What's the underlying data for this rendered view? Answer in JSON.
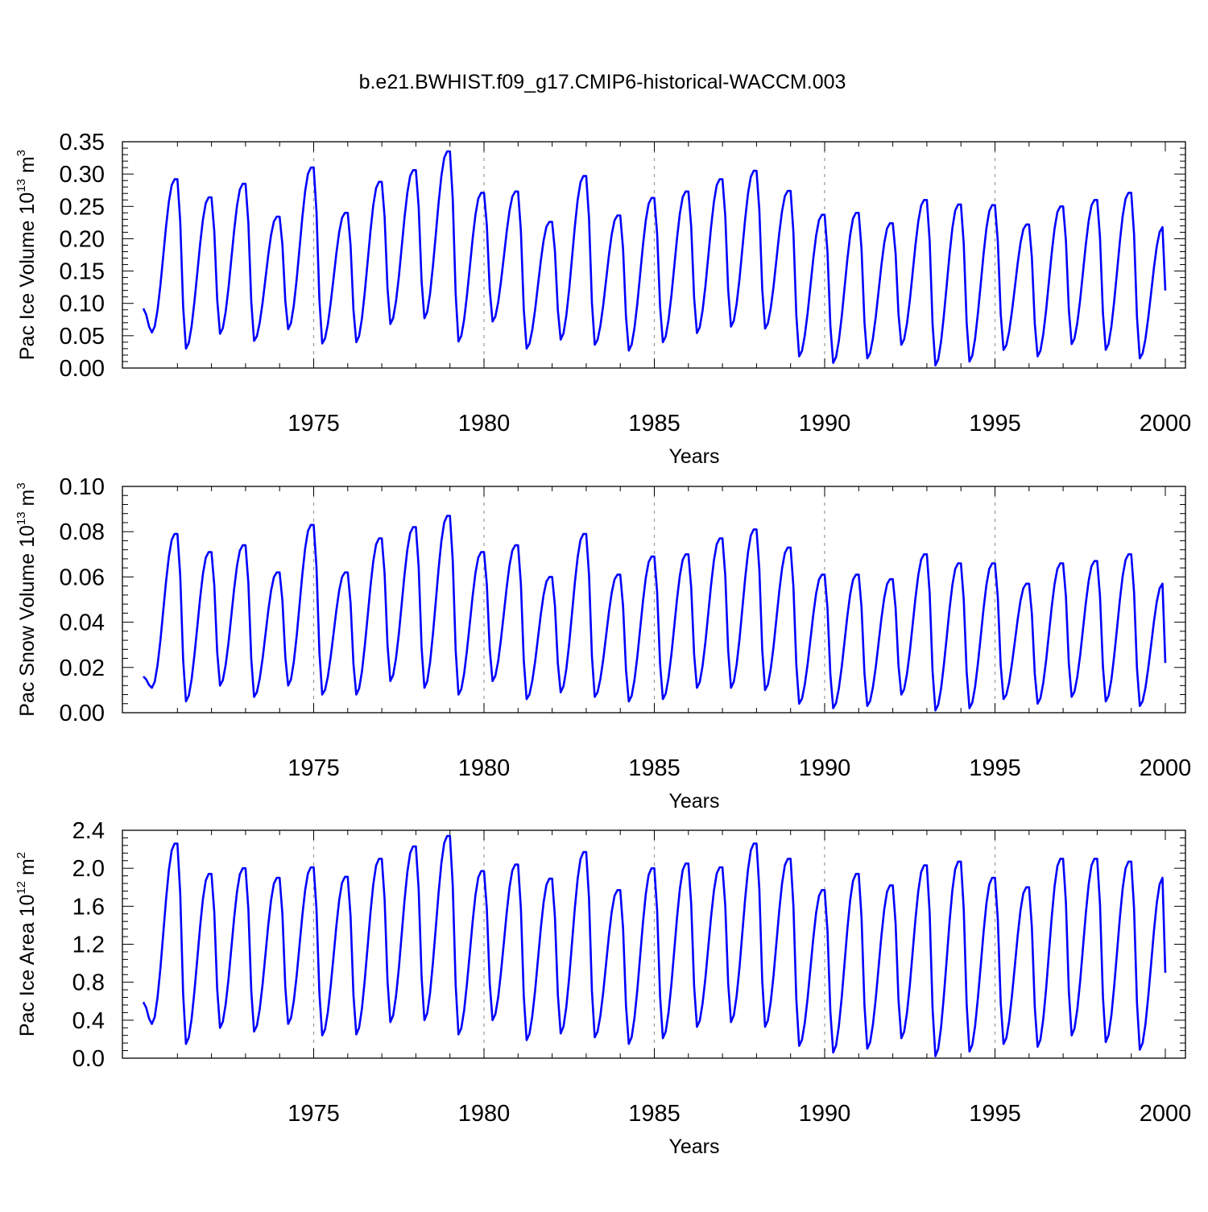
{
  "title": "b.e21.BWHIST.f09_g17.CMIP6-historical-WACCM.003",
  "colors": {
    "series": "#0000ff",
    "axis": "#000000",
    "gridline": "#999999"
  },
  "chart_data": [
    {
      "type": "line",
      "ylabel_text": "Pac Ice Volume 10",
      "ylabel_exp": "13",
      "ylabel_unit": " m",
      "ylabel_unit_exp": "3",
      "xlabel": "Years",
      "xlim": [
        1970,
        2000
      ],
      "ylim": [
        0,
        0.35
      ],
      "yticks": [
        0,
        0.05,
        0.1,
        0.15,
        0.2,
        0.25,
        0.3,
        0.35
      ],
      "ytick_labels": [
        "0.00",
        "0.05",
        "0.10",
        "0.15",
        "0.20",
        "0.25",
        "0.30",
        "0.35"
      ],
      "xticks": [
        1975,
        1980,
        1985,
        1990,
        1995,
        2000
      ],
      "xtick_labels": [
        "1975",
        "1980",
        "1985",
        "1990",
        "1995",
        "2000"
      ],
      "vlines": [
        1975,
        1980,
        1985,
        1990,
        1995
      ],
      "minima": [
        0.055,
        0.03,
        0.053,
        0.042,
        0.06,
        0.038,
        0.04,
        0.068,
        0.077,
        0.041,
        0.072,
        0.03,
        0.044,
        0.036,
        0.027,
        0.04,
        0.054,
        0.064,
        0.061,
        0.018,
        0.008,
        0.015,
        0.036,
        0.004,
        0.01,
        0.028,
        0.018,
        0.037,
        0.028,
        0.015
      ],
      "maxima": [
        0.292,
        0.264,
        0.285,
        0.234,
        0.31,
        0.24,
        0.288,
        0.306,
        0.335,
        0.271,
        0.273,
        0.226,
        0.297,
        0.236,
        0.263,
        0.273,
        0.292,
        0.305,
        0.274,
        0.237,
        0.24,
        0.224,
        0.26,
        0.253,
        0.252,
        0.222,
        0.25,
        0.26,
        0.271,
        0.218
      ],
      "start_value": 0.092,
      "end_value": 0.12
    },
    {
      "type": "line",
      "ylabel_text": "Pac Snow Volume 10",
      "ylabel_exp": "13",
      "ylabel_unit": " m",
      "ylabel_unit_exp": "3",
      "xlabel": "Years",
      "xlim": [
        1970,
        2000
      ],
      "ylim": [
        0,
        0.1
      ],
      "yticks": [
        0,
        0.02,
        0.04,
        0.06,
        0.08,
        0.1
      ],
      "ytick_labels": [
        "0.00",
        "0.02",
        "0.04",
        "0.06",
        "0.08",
        "0.10"
      ],
      "xticks": [
        1975,
        1980,
        1985,
        1990,
        1995,
        2000
      ],
      "xtick_labels": [
        "1975",
        "1980",
        "1985",
        "1990",
        "1995",
        "2000"
      ],
      "vlines": [
        1975,
        1980,
        1985,
        1990,
        1995
      ],
      "minima": [
        0.011,
        0.005,
        0.012,
        0.007,
        0.012,
        0.008,
        0.008,
        0.014,
        0.011,
        0.008,
        0.014,
        0.006,
        0.009,
        0.007,
        0.005,
        0.006,
        0.011,
        0.011,
        0.01,
        0.004,
        0.002,
        0.003,
        0.008,
        0.001,
        0.002,
        0.006,
        0.004,
        0.007,
        0.005,
        0.003
      ],
      "maxima": [
        0.079,
        0.071,
        0.074,
        0.062,
        0.083,
        0.062,
        0.077,
        0.082,
        0.087,
        0.071,
        0.074,
        0.06,
        0.079,
        0.061,
        0.069,
        0.07,
        0.077,
        0.081,
        0.073,
        0.061,
        0.061,
        0.059,
        0.07,
        0.066,
        0.066,
        0.057,
        0.066,
        0.067,
        0.07,
        0.057
      ],
      "start_value": 0.016,
      "end_value": 0.022
    },
    {
      "type": "line",
      "ylabel_text": "Pac Ice Area 10",
      "ylabel_exp": "12",
      "ylabel_unit": " m",
      "ylabel_unit_exp": "2",
      "xlabel": "Years",
      "xlim": [
        1970,
        2000
      ],
      "ylim": [
        0,
        2.4
      ],
      "yticks": [
        0,
        0.4,
        0.8,
        1.2,
        1.6,
        2.0,
        2.4
      ],
      "ytick_labels": [
        "0.0",
        "0.4",
        "0.8",
        "1.2",
        "1.6",
        "2.0",
        "2.4"
      ],
      "xticks": [
        1975,
        1980,
        1985,
        1990,
        1995,
        2000
      ],
      "xtick_labels": [
        "1975",
        "1980",
        "1985",
        "1990",
        "1995",
        "2000"
      ],
      "vlines": [
        1975,
        1980,
        1985,
        1990,
        1995
      ],
      "minima": [
        0.36,
        0.15,
        0.32,
        0.28,
        0.36,
        0.24,
        0.25,
        0.38,
        0.4,
        0.25,
        0.4,
        0.19,
        0.26,
        0.22,
        0.15,
        0.21,
        0.33,
        0.38,
        0.33,
        0.13,
        0.06,
        0.1,
        0.21,
        0.02,
        0.07,
        0.15,
        0.12,
        0.24,
        0.17,
        0.09
      ],
      "maxima": [
        2.26,
        1.94,
        2.0,
        1.9,
        2.01,
        1.91,
        2.1,
        2.23,
        2.34,
        1.97,
        2.04,
        1.89,
        2.17,
        1.77,
        2.0,
        2.05,
        2.01,
        2.26,
        2.1,
        1.77,
        1.94,
        1.82,
        2.03,
        2.07,
        1.9,
        1.8,
        2.1,
        2.1,
        2.07,
        1.9
      ],
      "start_value": 0.59,
      "end_value": 0.9
    }
  ]
}
